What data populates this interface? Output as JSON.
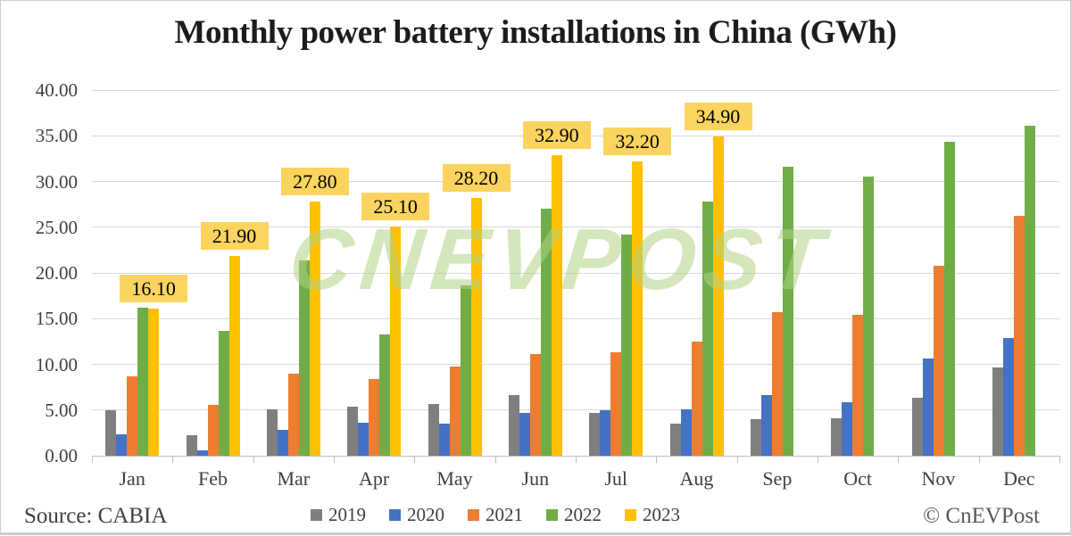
{
  "page": {
    "title": "Monthly power battery installations in China (GWh)",
    "source_label": "Source: CABIA",
    "credit_label": "© CnEVPost",
    "watermark": "CNEVPOST"
  },
  "colors": {
    "grid": "#d9d9d9",
    "axis": "#bfbfbf",
    "data_label_bg": "#fbd45f",
    "watermark_green": "rgba(176,209,131,0.55)"
  },
  "chart_data": {
    "type": "bar",
    "title": "Monthly power battery installations in China (GWh)",
    "xlabel": "",
    "ylabel": "",
    "ylim": [
      0,
      40
    ],
    "ytick_step": 5,
    "yticks": [
      "0.00",
      "5.00",
      "10.00",
      "15.00",
      "20.00",
      "25.00",
      "30.00",
      "35.00",
      "40.00"
    ],
    "grid": true,
    "legend_position": "bottom",
    "categories": [
      "Jan",
      "Feb",
      "Mar",
      "Apr",
      "May",
      "Jun",
      "Jul",
      "Aug",
      "Sep",
      "Oct",
      "Nov",
      "Dec"
    ],
    "series": [
      {
        "name": "2019",
        "color": "#7f7f7f",
        "values": [
          5.0,
          2.2,
          5.1,
          5.4,
          5.7,
          6.6,
          4.7,
          3.5,
          4.0,
          4.1,
          6.3,
          9.7
        ]
      },
      {
        "name": "2020",
        "color": "#4472c4",
        "values": [
          2.3,
          0.6,
          2.8,
          3.6,
          3.5,
          4.7,
          5.0,
          5.1,
          6.6,
          5.9,
          10.6,
          12.9
        ]
      },
      {
        "name": "2021",
        "color": "#ed7d31",
        "values": [
          8.7,
          5.6,
          9.0,
          8.4,
          9.8,
          11.1,
          11.3,
          12.5,
          15.7,
          15.4,
          20.8,
          26.2
        ]
      },
      {
        "name": "2022",
        "color": "#70ad47",
        "values": [
          16.2,
          13.7,
          21.4,
          13.3,
          18.6,
          27.0,
          24.2,
          27.8,
          31.6,
          30.5,
          34.3,
          36.1
        ]
      },
      {
        "name": "2023",
        "color": "#ffc000",
        "values": [
          16.1,
          21.9,
          27.8,
          25.1,
          28.2,
          32.9,
          32.2,
          34.9,
          null,
          null,
          null,
          null
        ],
        "point_labels": [
          "16.10",
          "21.90",
          "27.80",
          "25.10",
          "28.20",
          "32.90",
          "32.20",
          "34.90",
          null,
          null,
          null,
          null
        ]
      }
    ]
  }
}
